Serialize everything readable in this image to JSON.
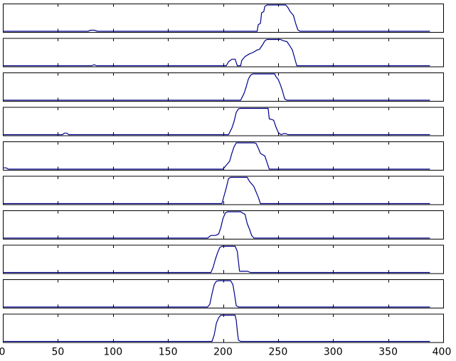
{
  "colors": {
    "line": "#00008b",
    "frame": "#000000",
    "background": "#ffffff"
  },
  "chart_data": {
    "type": "line",
    "title": "",
    "xlabel": "",
    "ylabel": "",
    "xlim": [
      0,
      400
    ],
    "ylim": [
      0,
      1
    ],
    "grid": false,
    "legend": "none",
    "xticks": [
      0,
      50,
      100,
      150,
      200,
      250,
      300,
      350,
      400
    ],
    "xtick_labels": [
      "0",
      "50",
      "100",
      "150",
      "200",
      "250",
      "300",
      "350",
      "400"
    ],
    "x_end": 388,
    "subplots": [
      {
        "points": [
          [
            0,
            0
          ],
          [
            77,
            0
          ],
          [
            80,
            0.04
          ],
          [
            83,
            0.04
          ],
          [
            86,
            0
          ],
          [
            231,
            0
          ],
          [
            232,
            0.25
          ],
          [
            234,
            0.3
          ],
          [
            235,
            0.7
          ],
          [
            237,
            0.75
          ],
          [
            238,
            0.95
          ],
          [
            240,
            1
          ],
          [
            257,
            1
          ],
          [
            259,
            0.9
          ],
          [
            261,
            0.75
          ],
          [
            264,
            0.6
          ],
          [
            266,
            0.3
          ],
          [
            268,
            0.05
          ],
          [
            270,
            0
          ],
          [
            388,
            0
          ]
        ]
      },
      {
        "points": [
          [
            0,
            0
          ],
          [
            81,
            0
          ],
          [
            83,
            0.04
          ],
          [
            85,
            0
          ],
          [
            203,
            0
          ],
          [
            205,
            0.15
          ],
          [
            208,
            0.25
          ],
          [
            211,
            0.25
          ],
          [
            213,
            0
          ],
          [
            216,
            0
          ],
          [
            217,
            0.2
          ],
          [
            220,
            0.35
          ],
          [
            224,
            0.45
          ],
          [
            227,
            0.5
          ],
          [
            231,
            0.6
          ],
          [
            233,
            0.62
          ],
          [
            236,
            0.8
          ],
          [
            238,
            0.95
          ],
          [
            240,
            1
          ],
          [
            252,
            1
          ],
          [
            255,
            0.95
          ],
          [
            258,
            0.92
          ],
          [
            260,
            0.8
          ],
          [
            263,
            0.6
          ],
          [
            265,
            0.3
          ],
          [
            267,
            0
          ],
          [
            388,
            0
          ]
        ]
      },
      {
        "points": [
          [
            0,
            0
          ],
          [
            216,
            0
          ],
          [
            219,
            0.25
          ],
          [
            221,
            0.5
          ],
          [
            223,
            0.8
          ],
          [
            225,
            0.95
          ],
          [
            227,
            1
          ],
          [
            247,
            1
          ],
          [
            248,
            0.9
          ],
          [
            250,
            0.8
          ],
          [
            252,
            0.6
          ],
          [
            254,
            0.35
          ],
          [
            256,
            0.05
          ],
          [
            258,
            0
          ],
          [
            388,
            0
          ]
        ]
      },
      {
        "points": [
          [
            0,
            0
          ],
          [
            54,
            0
          ],
          [
            56,
            0.06
          ],
          [
            58,
            0.06
          ],
          [
            60,
            0
          ],
          [
            205,
            0
          ],
          [
            208,
            0.25
          ],
          [
            210,
            0.5
          ],
          [
            212,
            0.85
          ],
          [
            214,
            0.98
          ],
          [
            216,
            1
          ],
          [
            241,
            1
          ],
          [
            242,
            0.6
          ],
          [
            244,
            0.58
          ],
          [
            246,
            0.55
          ],
          [
            248,
            0.3
          ],
          [
            250,
            0.1
          ],
          [
            251,
            0.05
          ],
          [
            253,
            0
          ],
          [
            255,
            0.04
          ],
          [
            257,
            0.04
          ],
          [
            259,
            0
          ],
          [
            388,
            0
          ]
        ]
      },
      {
        "points": [
          [
            0,
            0.05
          ],
          [
            3,
            0.05
          ],
          [
            5,
            0
          ],
          [
            200,
            0
          ],
          [
            202,
            0.1
          ],
          [
            204,
            0.2
          ],
          [
            206,
            0.3
          ],
          [
            208,
            0.6
          ],
          [
            210,
            0.85
          ],
          [
            212,
            1
          ],
          [
            228,
            1
          ],
          [
            230,
            0.98
          ],
          [
            232,
            0.8
          ],
          [
            234,
            0.6
          ],
          [
            236,
            0.55
          ],
          [
            238,
            0.5
          ],
          [
            240,
            0.25
          ],
          [
            242,
            0
          ],
          [
            388,
            0
          ]
        ]
      },
      {
        "points": [
          [
            0,
            0
          ],
          [
            199,
            0
          ],
          [
            201,
            0.3
          ],
          [
            203,
            0.6
          ],
          [
            205,
            0.95
          ],
          [
            207,
            1
          ],
          [
            222,
            1
          ],
          [
            224,
            0.85
          ],
          [
            226,
            0.75
          ],
          [
            228,
            0.65
          ],
          [
            230,
            0.45
          ],
          [
            232,
            0.25
          ],
          [
            234,
            0
          ],
          [
            388,
            0
          ]
        ]
      },
      {
        "points": [
          [
            0,
            0
          ],
          [
            186,
            0
          ],
          [
            189,
            0.1
          ],
          [
            193,
            0.1
          ],
          [
            196,
            0.15
          ],
          [
            198,
            0.4
          ],
          [
            200,
            0.75
          ],
          [
            202,
            0.95
          ],
          [
            204,
            1
          ],
          [
            216,
            1
          ],
          [
            218,
            0.95
          ],
          [
            220,
            0.9
          ],
          [
            222,
            0.55
          ],
          [
            224,
            0.35
          ],
          [
            226,
            0.1
          ],
          [
            228,
            0
          ],
          [
            388,
            0
          ]
        ]
      },
      {
        "points": [
          [
            0,
            0
          ],
          [
            189,
            0
          ],
          [
            191,
            0.2
          ],
          [
            193,
            0.5
          ],
          [
            195,
            0.75
          ],
          [
            197,
            0.95
          ],
          [
            199,
            1
          ],
          [
            211,
            1
          ],
          [
            213,
            0.8
          ],
          [
            215,
            0.05
          ],
          [
            222,
            0.05
          ],
          [
            225,
            0
          ],
          [
            388,
            0
          ]
        ]
      },
      {
        "points": [
          [
            0,
            0
          ],
          [
            186,
            0
          ],
          [
            188,
            0.1
          ],
          [
            190,
            0.5
          ],
          [
            192,
            0.85
          ],
          [
            194,
            0.98
          ],
          [
            196,
            1
          ],
          [
            207,
            1
          ],
          [
            209,
            0.85
          ],
          [
            210,
            0.6
          ],
          [
            212,
            0.05
          ],
          [
            214,
            0
          ],
          [
            388,
            0
          ]
        ]
      },
      {
        "points": [
          [
            0,
            0
          ],
          [
            190,
            0
          ],
          [
            192,
            0.25
          ],
          [
            194,
            0.7
          ],
          [
            196,
            0.9
          ],
          [
            198,
            1
          ],
          [
            211,
            1
          ],
          [
            212,
            0.8
          ],
          [
            213,
            0.4
          ],
          [
            214,
            0.05
          ],
          [
            216,
            0
          ],
          [
            388,
            0
          ]
        ]
      }
    ]
  }
}
